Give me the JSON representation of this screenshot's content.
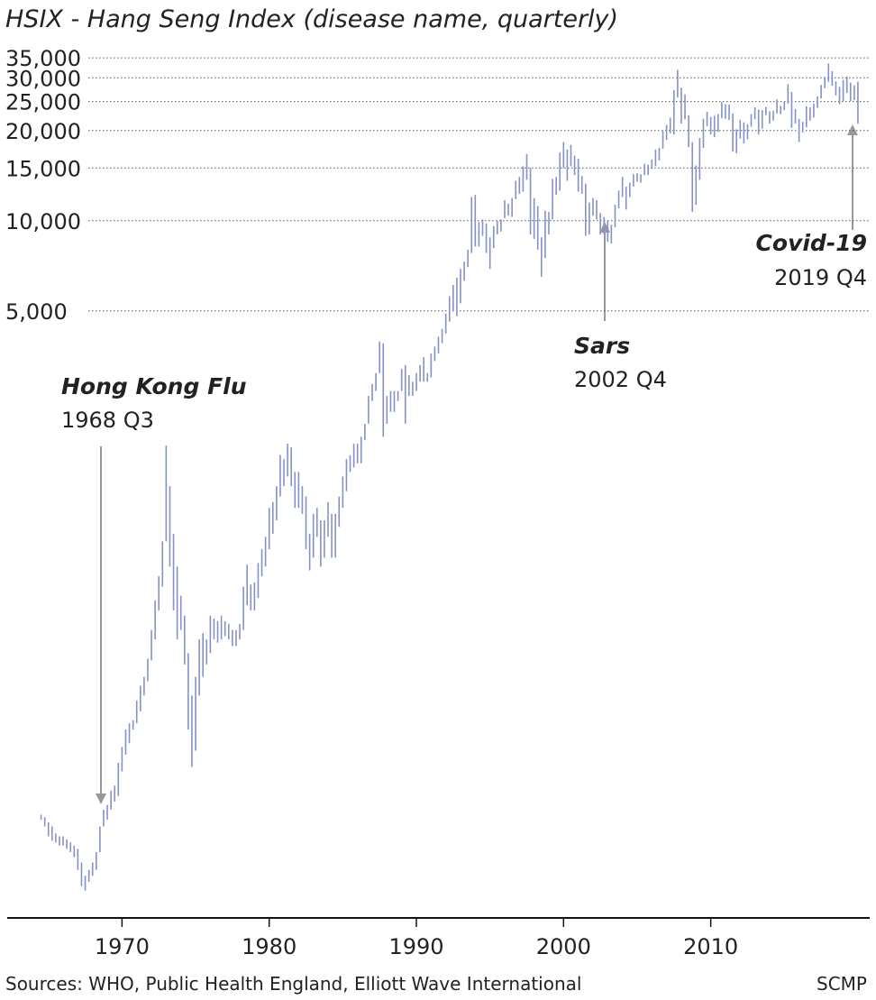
{
  "chart_data": {
    "type": "range",
    "title": "HSIX - Hang Seng Index (disease name, quarterly)",
    "log_scale": true,
    "grid": true,
    "color": "#8592c6",
    "ylim": [
      47,
      36000
    ],
    "xlim": [
      1962.2,
      2020.8
    ],
    "yticks": [
      {
        "value": 5000,
        "label": "5,000"
      },
      {
        "value": 10000,
        "label": "10,000"
      },
      {
        "value": 15000,
        "label": "15,000"
      },
      {
        "value": 20000,
        "label": "20,000"
      },
      {
        "value": 25000,
        "label": "25,000"
      },
      {
        "value": 30000,
        "label": "30,000"
      },
      {
        "value": 35000,
        "label": "35,000"
      }
    ],
    "xticks": [
      1970,
      1980,
      1990,
      2000,
      2010
    ],
    "annotations": [
      {
        "title": "Hong Kong Flu",
        "subtitle": "1968 Q3"
      },
      {
        "title": "Sars",
        "subtitle": "2002 Q4"
      },
      {
        "title": "Covid-19",
        "subtitle": "2019 Q4"
      }
    ],
    "source": "Sources: WHO, Public Health England, Elliott Wave International",
    "credit": "SCMP",
    "x": [
      1964.5,
      1964.75,
      1965,
      1965.25,
      1965.5,
      1965.75,
      1966,
      1966.25,
      1966.5,
      1966.75,
      1967,
      1967.25,
      1967.5,
      1967.75,
      1968,
      1968.25,
      1968.5,
      1968.75,
      1969,
      1969.25,
      1969.5,
      1969.75,
      1970,
      1970.25,
      1970.5,
      1970.75,
      1971,
      1971.25,
      1971.5,
      1971.75,
      1972,
      1972.25,
      1972.5,
      1972.75,
      1973,
      1973.25,
      1973.5,
      1973.75,
      1974,
      1974.25,
      1974.5,
      1974.75,
      1975,
      1975.25,
      1975.5,
      1975.75,
      1976,
      1976.25,
      1976.5,
      1976.75,
      1977,
      1977.25,
      1977.5,
      1977.75,
      1978,
      1978.25,
      1978.5,
      1978.75,
      1979,
      1979.25,
      1979.5,
      1979.75,
      1980,
      1980.25,
      1980.5,
      1980.75,
      1981,
      1981.25,
      1981.5,
      1981.75,
      1982,
      1982.25,
      1982.5,
      1982.75,
      1983,
      1983.25,
      1983.5,
      1983.75,
      1984,
      1984.25,
      1984.5,
      1984.75,
      1985,
      1985.25,
      1985.5,
      1985.75,
      1986,
      1986.25,
      1986.5,
      1986.75,
      1987,
      1987.25,
      1987.5,
      1987.75,
      1988,
      1988.25,
      1988.5,
      1988.75,
      1989,
      1989.25,
      1989.5,
      1989.75,
      1990,
      1990.25,
      1990.5,
      1990.75,
      1991,
      1991.25,
      1991.5,
      1991.75,
      1992,
      1992.25,
      1992.5,
      1992.75,
      1993,
      1993.25,
      1993.5,
      1993.75,
      1994,
      1994.25,
      1994.5,
      1994.75,
      1995,
      1995.25,
      1995.5,
      1995.75,
      1996,
      1996.25,
      1996.5,
      1996.75,
      1997,
      1997.25,
      1997.5,
      1997.75,
      1998,
      1998.25,
      1998.5,
      1998.75,
      1999,
      1999.25,
      1999.5,
      1999.75,
      2000,
      2000.25,
      2000.5,
      2000.75,
      2001,
      2001.25,
      2001.5,
      2001.75,
      2002,
      2002.25,
      2002.5,
      2002.75,
      2003,
      2003.25,
      2003.5,
      2003.75,
      2004,
      2004.25,
      2004.5,
      2004.75,
      2005,
      2005.25,
      2005.5,
      2005.75,
      2006,
      2006.25,
      2006.5,
      2006.75,
      2007,
      2007.25,
      2007.5,
      2007.75,
      2008,
      2008.25,
      2008.5,
      2008.75,
      2009,
      2009.25,
      2009.5,
      2009.75,
      2010,
      2010.25,
      2010.5,
      2010.75,
      2011,
      2011.25,
      2011.5,
      2011.75,
      2012,
      2012.25,
      2012.5,
      2012.75,
      2013,
      2013.25,
      2013.5,
      2013.75,
      2014,
      2014.25,
      2014.5,
      2014.75,
      2015,
      2015.25,
      2015.5,
      2015.75,
      2016,
      2016.25,
      2016.5,
      2016.75,
      2017,
      2017.25,
      2017.5,
      2017.75,
      2018,
      2018.25,
      2018.5,
      2018.75,
      2019,
      2019.25,
      2019.5,
      2019.75,
      2020
    ],
    "high": [
      104,
      102,
      98,
      95,
      90,
      88,
      88,
      86,
      84,
      82,
      80,
      72,
      65,
      68,
      72,
      78,
      95,
      108,
      112,
      125,
      130,
      155,
      175,
      200,
      210,
      215,
      250,
      280,
      300,
      345,
      430,
      540,
      650,
      850,
      1775,
      1300,
      900,
      700,
      560,
      480,
      360,
      260,
      300,
      400,
      420,
      400,
      480,
      470,
      460,
      480,
      460,
      450,
      430,
      430,
      450,
      600,
      710,
      610,
      620,
      720,
      800,
      880,
      1100,
      1150,
      1300,
      1650,
      1600,
      1800,
      1750,
      1450,
      1450,
      1300,
      1200,
      900,
      1050,
      1100,
      1000,
      1000,
      1150,
      1050,
      1050,
      1200,
      1400,
      1600,
      1650,
      1800,
      1800,
      1900,
      2100,
      2600,
      2850,
      3100,
      3950,
      3900,
      2600,
      2700,
      2700,
      2700,
      3200,
      3300,
      3050,
      2900,
      3100,
      3300,
      3500,
      3100,
      3600,
      3800,
      4100,
      4350,
      4900,
      5600,
      6100,
      6450,
      6900,
      7300,
      8000,
      12000,
      12200,
      9900,
      10100,
      9800,
      8800,
      9600,
      10000,
      10100,
      11700,
      11400,
      11900,
      13600,
      14000,
      15200,
      16700,
      15000,
      11900,
      11200,
      8800,
      10800,
      10700,
      13800,
      14000,
      16900,
      18300,
      17300,
      17900,
      16500,
      16100,
      14100,
      13300,
      11500,
      11900,
      11700,
      10600,
      10300,
      10000,
      9700,
      11300,
      12600,
      14000,
      13000,
      13400,
      14300,
      14400,
      14300,
      15500,
      15400,
      16000,
      17300,
      17500,
      20000,
      20900,
      22100,
      27300,
      31900,
      27800,
      26400,
      22500,
      18300,
      15300,
      18900,
      21900,
      23100,
      22200,
      22400,
      22700,
      24900,
      24500,
      24400,
      22800,
      20200,
      21700,
      21300,
      21000,
      22700,
      23900,
      23500,
      23400,
      24000,
      23200,
      23300,
      25400,
      24200,
      25000,
      28600,
      26900,
      23600,
      21900,
      21400,
      24100,
      23900,
      24600,
      26000,
      28400,
      30200,
      33500,
      31600,
      29200,
      28000,
      29500,
      30300,
      28900,
      28300,
      29100
    ],
    "low": [
      100,
      95,
      88,
      85,
      84,
      82,
      82,
      80,
      78,
      75,
      68,
      60,
      58,
      62,
      65,
      68,
      78,
      95,
      100,
      108,
      115,
      120,
      145,
      165,
      180,
      200,
      210,
      230,
      260,
      290,
      340,
      400,
      500,
      600,
      850,
      700,
      500,
      400,
      430,
      330,
      200,
      150,
      170,
      260,
      300,
      330,
      360,
      400,
      390,
      400,
      410,
      400,
      380,
      380,
      400,
      430,
      520,
      500,
      500,
      550,
      650,
      700,
      800,
      900,
      1000,
      1200,
      1300,
      1400,
      1300,
      1100,
      1100,
      1050,
      800,
      680,
      750,
      880,
      700,
      750,
      880,
      750,
      750,
      950,
      1100,
      1250,
      1450,
      1500,
      1550,
      1550,
      1850,
      2100,
      2500,
      2700,
      3100,
      1900,
      2100,
      2300,
      2300,
      2500,
      2700,
      2100,
      2600,
      2600,
      2700,
      2900,
      2900,
      2900,
      3000,
      3400,
      3600,
      3900,
      4200,
      4600,
      5000,
      4800,
      5300,
      6300,
      7000,
      7800,
      8200,
      8200,
      8900,
      7800,
      6900,
      8100,
      9000,
      9200,
      10200,
      10400,
      10300,
      11800,
      12300,
      12500,
      13700,
      9000,
      8700,
      8000,
      6500,
      7500,
      9000,
      10100,
      12200,
      12600,
      15000,
      13600,
      15200,
      14200,
      12500,
      12300,
      8900,
      9000,
      10400,
      10100,
      9000,
      9000,
      8500,
      8400,
      9500,
      11000,
      12000,
      10900,
      12000,
      13000,
      13500,
      13400,
      14200,
      14200,
      14900,
      15200,
      15900,
      17400,
      18600,
      19600,
      19400,
      25800,
      21100,
      21800,
      17600,
      10700,
      11300,
      13700,
      17500,
      20700,
      19400,
      19000,
      19800,
      22000,
      21900,
      21700,
      17000,
      16800,
      18800,
      18100,
      18700,
      20600,
      21800,
      19400,
      20300,
      22500,
      21100,
      21600,
      22800,
      22700,
      23400,
      24600,
      20400,
      21100,
      18300,
      19700,
      20500,
      21600,
      22100,
      23800,
      25600,
      27700,
      29100,
      28200,
      26200,
      24500,
      25000,
      26700,
      25100,
      25300,
      21100
    ]
  }
}
